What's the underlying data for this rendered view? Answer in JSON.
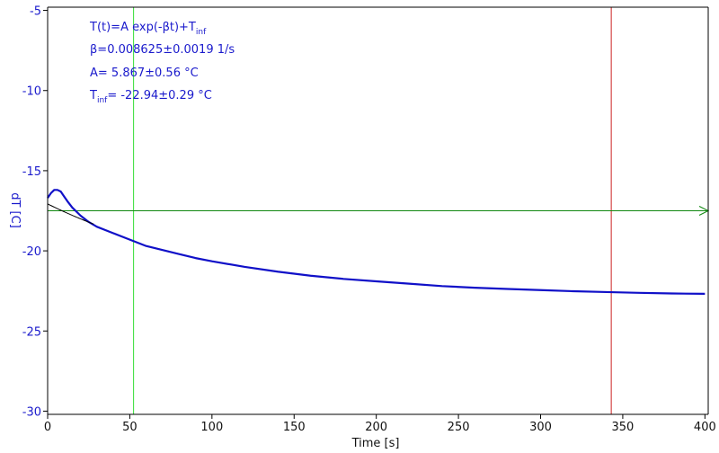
{
  "chart_data": {
    "type": "line",
    "xlabel": "Time [s]",
    "ylabel": "dT [C]",
    "xlim": [
      0,
      402
    ],
    "ylim": [
      -30.2,
      -4.8
    ],
    "x_ticks": [
      0,
      50,
      100,
      150,
      200,
      250,
      300,
      350,
      400
    ],
    "x_tick_labels": [
      "0",
      "50",
      "100",
      "150",
      "200",
      "250",
      "300",
      "350",
      "400"
    ],
    "y_ticks": [
      -5,
      -10,
      -15,
      -20,
      -25,
      -30
    ],
    "y_tick_labels": [
      "-5",
      "-10",
      "-15",
      "-20",
      "-25",
      "-30"
    ],
    "grid": false,
    "colors": {
      "data": "#1010c8",
      "fit": "#000000",
      "green_cursor": "#33dd33",
      "red_cursor": "#cc2222",
      "asymptote": "#118811",
      "axis_text": "#1a1acc",
      "axis_line": "#000000"
    },
    "annotation": {
      "line1": {
        "main": "T(t)=A exp(-βt)+T",
        "sub": "inf"
      },
      "line2": "β=0.008625±0.0019 1/s",
      "line3": "A= 5.867±0.56 °C",
      "line4": {
        "prefix": "T",
        "sub": "inf",
        "rest": "= -22.94±0.29 °C"
      }
    },
    "cursors": {
      "green_x": 52.3,
      "red_x": 343
    },
    "asymptote_y": -17.5,
    "fit": {
      "A": 5.867,
      "beta": 0.008625,
      "T_inf": -22.94,
      "x_start": 0,
      "x_end": 28
    },
    "series": [
      {
        "x": [
          0,
          2,
          4,
          6,
          8,
          10,
          12,
          15,
          20,
          25,
          30,
          40,
          50,
          60,
          70,
          80,
          90,
          100,
          120,
          140,
          160,
          180,
          200,
          220,
          240,
          260,
          280,
          300,
          320,
          340,
          360,
          380,
          400
        ],
        "y": [
          -16.7,
          -16.4,
          -16.2,
          -16.2,
          -16.3,
          -16.6,
          -16.9,
          -17.3,
          -17.8,
          -18.2,
          -18.5,
          -18.9,
          -19.3,
          -19.7,
          -19.95,
          -20.2,
          -20.45,
          -20.65,
          -21.0,
          -21.3,
          -21.55,
          -21.75,
          -21.9,
          -22.05,
          -22.2,
          -22.3,
          -22.38,
          -22.45,
          -22.52,
          -22.57,
          -22.62,
          -22.66,
          -22.68
        ]
      }
    ]
  }
}
